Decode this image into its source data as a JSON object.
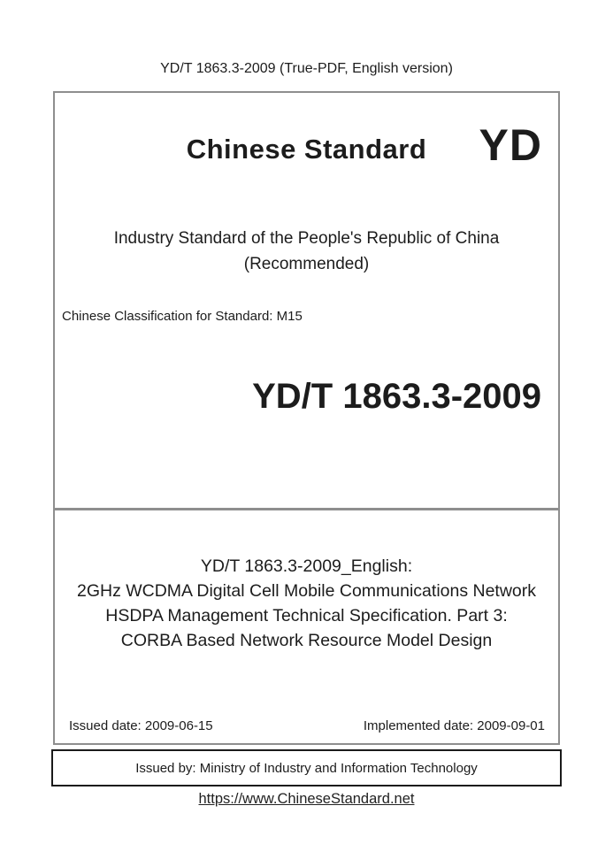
{
  "header": {
    "note": "YD/T 1863.3-2009 (True-PDF, English version)"
  },
  "cover": {
    "site_title": "Chinese Standard",
    "logo_text": "YD",
    "country_line": "Industry Standard of the People's Republic of China",
    "recommended_line": "(Recommended)",
    "classification": "Chinese Classification for Standard: M15",
    "standard_number": "YD/T 1863.3-2009",
    "english_title": {
      "line1": "YD/T 1863.3-2009_English:",
      "line2": "2GHz WCDMA Digital Cell Mobile Communications Network",
      "line3": "HSDPA Management Technical Specification. Part 3:",
      "line4": "CORBA Based Network Resource Model Design"
    },
    "issued_date": "Issued date: 2009-06-15",
    "implemented_date": "Implemented date: 2009-09-01",
    "issued_by": "Issued by: Ministry of Industry and Information Technology"
  },
  "footer": {
    "link": "https://www.ChineseStandard.net"
  },
  "colors": {
    "box_border_gray": "#8e8e8e",
    "issuer_border_black": "#1a1a1a",
    "text": "#1c1c1c",
    "link": "#222222",
    "background": "#ffffff"
  }
}
